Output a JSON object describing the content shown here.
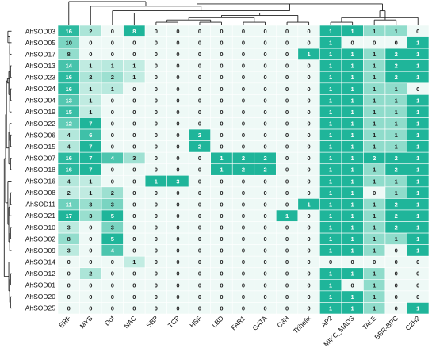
{
  "chart_data": {
    "type": "heatmap",
    "title": "",
    "xlabel": "",
    "ylabel": "",
    "rows": [
      "AhSOD03",
      "AhSOD05",
      "AhSOD17",
      "AhSOD13",
      "AhSOD23",
      "AhSOD24",
      "AhSOD04",
      "AhSOD19",
      "AhSOD22",
      "AhSOD06",
      "AhSOD15",
      "AhSOD07",
      "AhSOD18",
      "AhSOD16",
      "AhSOD08",
      "AhSOD11",
      "AhSOD21",
      "AhSOD10",
      "AhSOD02",
      "AhSOD09",
      "AhSOD14",
      "AhSOD12",
      "AhSOD01",
      "AhSOD20",
      "AhSOD25"
    ],
    "columns": [
      "ERF",
      "MYB",
      "Dof",
      "NAC",
      "SBP",
      "TCP",
      "HSF",
      "LBD",
      "FAR1",
      "GATA",
      "C3H",
      "Trihelix",
      "AP2",
      "MIKC_MADS",
      "TALE",
      "BBR-BPC",
      "C2H2"
    ],
    "values": [
      [
        16,
        2,
        0,
        8,
        0,
        0,
        0,
        0,
        0,
        0,
        0,
        0,
        1,
        1,
        1,
        1,
        0
      ],
      [
        10,
        0,
        0,
        0,
        0,
        0,
        0,
        0,
        0,
        0,
        0,
        0,
        1,
        0,
        0,
        0,
        1
      ],
      [
        8,
        0,
        0,
        0,
        0,
        0,
        0,
        0,
        0,
        0,
        0,
        1,
        1,
        1,
        1,
        2,
        1
      ],
      [
        14,
        1,
        1,
        1,
        0,
        0,
        0,
        0,
        0,
        0,
        0,
        0,
        1,
        1,
        1,
        2,
        1
      ],
      [
        16,
        2,
        2,
        1,
        0,
        0,
        0,
        0,
        0,
        0,
        0,
        0,
        1,
        1,
        1,
        2,
        1
      ],
      [
        16,
        1,
        1,
        0,
        0,
        0,
        0,
        0,
        0,
        0,
        0,
        0,
        1,
        1,
        1,
        1,
        0
      ],
      [
        13,
        1,
        0,
        0,
        0,
        0,
        0,
        0,
        0,
        0,
        0,
        0,
        1,
        1,
        1,
        1,
        1
      ],
      [
        15,
        1,
        0,
        0,
        0,
        0,
        0,
        0,
        0,
        0,
        0,
        0,
        1,
        1,
        1,
        1,
        1
      ],
      [
        12,
        7,
        0,
        0,
        0,
        0,
        0,
        0,
        0,
        0,
        0,
        0,
        1,
        1,
        1,
        1,
        1
      ],
      [
        4,
        6,
        0,
        0,
        0,
        0,
        2,
        0,
        0,
        0,
        0,
        0,
        1,
        1,
        1,
        1,
        1
      ],
      [
        4,
        7,
        0,
        0,
        0,
        0,
        2,
        0,
        0,
        0,
        0,
        0,
        1,
        1,
        1,
        1,
        1
      ],
      [
        16,
        7,
        4,
        3,
        0,
        0,
        0,
        1,
        2,
        2,
        0,
        0,
        1,
        1,
        2,
        2,
        1
      ],
      [
        16,
        7,
        0,
        0,
        0,
        0,
        0,
        1,
        2,
        2,
        0,
        0,
        1,
        1,
        1,
        2,
        1
      ],
      [
        4,
        1,
        0,
        0,
        1,
        3,
        0,
        0,
        0,
        0,
        0,
        0,
        1,
        1,
        1,
        1,
        1
      ],
      [
        2,
        1,
        2,
        0,
        0,
        0,
        0,
        0,
        0,
        0,
        0,
        0,
        1,
        1,
        0,
        1,
        1
      ],
      [
        11,
        3,
        3,
        0,
        0,
        0,
        0,
        0,
        0,
        0,
        0,
        1,
        1,
        1,
        1,
        2,
        1
      ],
      [
        17,
        3,
        5,
        0,
        0,
        0,
        0,
        0,
        0,
        0,
        1,
        0,
        1,
        1,
        1,
        2,
        1
      ],
      [
        3,
        0,
        3,
        0,
        0,
        0,
        0,
        0,
        0,
        0,
        0,
        0,
        1,
        1,
        1,
        2,
        1
      ],
      [
        8,
        0,
        5,
        0,
        0,
        0,
        0,
        0,
        0,
        0,
        0,
        0,
        1,
        1,
        1,
        1,
        1
      ],
      [
        3,
        0,
        4,
        0,
        0,
        0,
        0,
        0,
        0,
        0,
        0,
        0,
        1,
        1,
        1,
        0,
        1
      ],
      [
        0,
        0,
        0,
        1,
        0,
        0,
        0,
        0,
        0,
        0,
        0,
        0,
        0,
        0,
        0,
        0,
        0
      ],
      [
        0,
        2,
        0,
        0,
        0,
        0,
        0,
        0,
        0,
        0,
        0,
        0,
        1,
        1,
        1,
        0,
        0
      ],
      [
        0,
        0,
        0,
        0,
        0,
        0,
        0,
        0,
        0,
        0,
        0,
        0,
        1,
        0,
        1,
        0,
        0
      ],
      [
        0,
        0,
        0,
        0,
        0,
        0,
        0,
        0,
        0,
        0,
        0,
        0,
        1,
        1,
        1,
        0,
        0
      ],
      [
        0,
        0,
        0,
        0,
        0,
        0,
        0,
        0,
        0,
        0,
        0,
        0,
        1,
        1,
        1,
        0,
        1
      ]
    ],
    "grid": true,
    "legend": "none",
    "dendrograms": [
      "top",
      "left"
    ]
  }
}
